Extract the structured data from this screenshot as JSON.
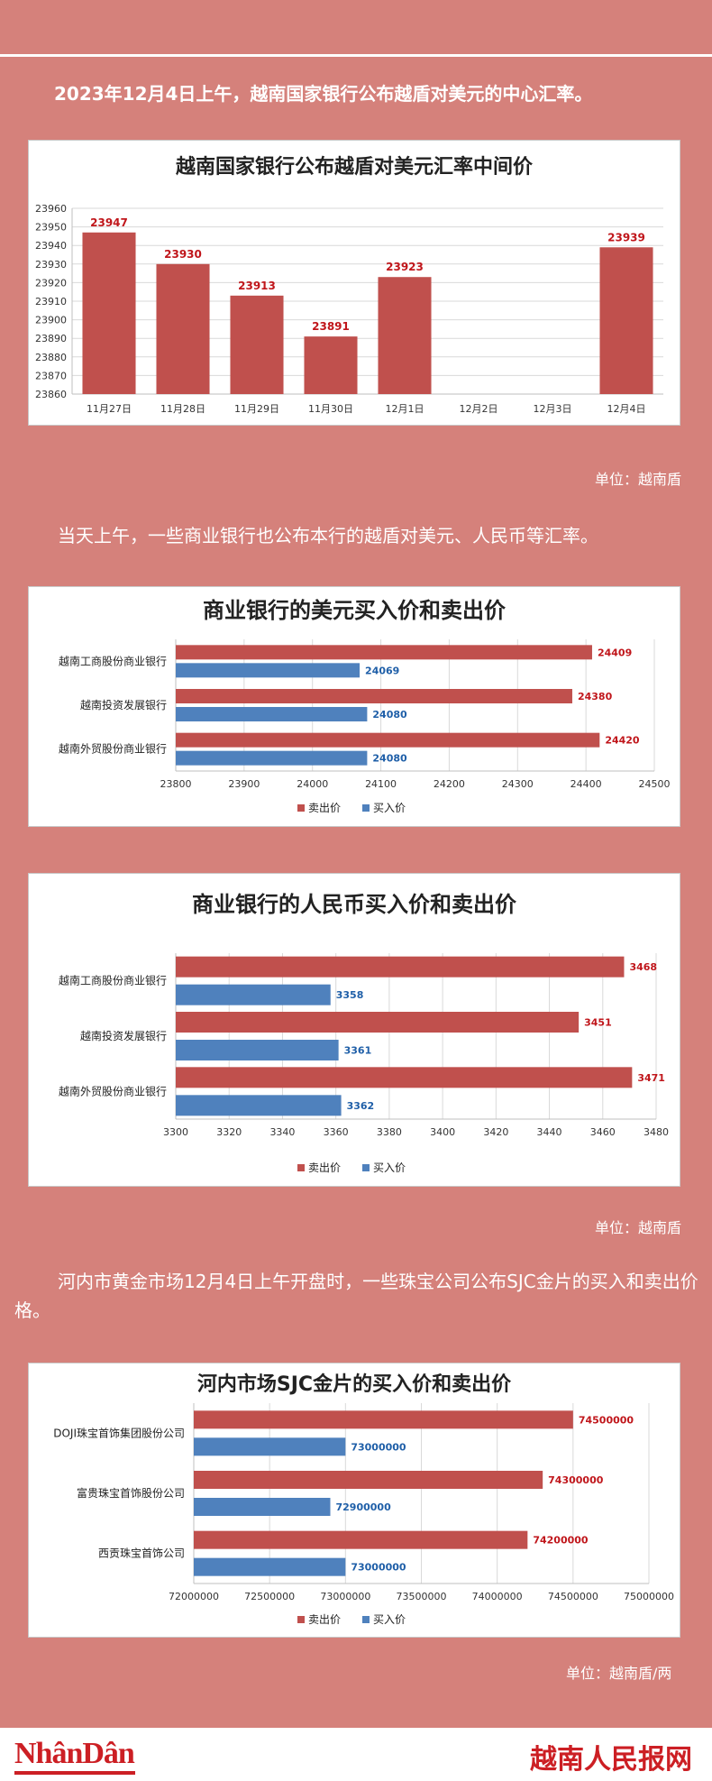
{
  "intro1": "2023年12月4日上午，越南国家银行公布越盾对美元的中心汇率。",
  "unit1": "单位：越南盾",
  "intro2": "当天上午，一些商业银行也公布本行的越盾对美元、人民币等汇率。",
  "unit2": "单位：越南盾",
  "intro3": "河内市黄金市场12月4日上午开盘时，一些珠宝公司公布SJC金片的买入和卖出价格。",
  "unit3": "单位：越南盾/两",
  "footer": {
    "logo": "NhânDân",
    "brand": "越南人民报网"
  },
  "colors": {
    "sell": "#c0504d",
    "buy": "#4f81bd",
    "sell_label": "#c0161b",
    "buy_label": "#1f5fa8"
  },
  "chart_data": [
    {
      "type": "bar",
      "title": "越南国家银行公布越盾对美元汇率中间价",
      "categories": [
        "11月27日",
        "11月28日",
        "11月29日",
        "11月30日",
        "12月1日",
        "12月2日",
        "12月3日",
        "12月4日"
      ],
      "values": [
        23947,
        23930,
        23913,
        23891,
        23923,
        null,
        null,
        23939
      ],
      "ylim": [
        23860,
        23960
      ],
      "yticks": [
        23860,
        23870,
        23880,
        23890,
        23900,
        23910,
        23920,
        23930,
        23940,
        23950,
        23960
      ],
      "grid": true
    },
    {
      "type": "bar",
      "orientation": "horizontal",
      "title": "商业银行的美元买入价和卖出价",
      "categories": [
        "越南工商股份商业银行",
        "越南投资发展银行",
        "越南外贸股份商业银行"
      ],
      "series": [
        {
          "name": "卖出价",
          "values": [
            24409,
            24380,
            24420
          ]
        },
        {
          "name": "买入价",
          "values": [
            24069,
            24080,
            24080
          ]
        }
      ],
      "xlim": [
        23800,
        24500
      ],
      "xticks": [
        23800,
        23900,
        24000,
        24100,
        24200,
        24300,
        24400,
        24500
      ],
      "legend": "bottom",
      "grid": true
    },
    {
      "type": "bar",
      "orientation": "horizontal",
      "title": "商业银行的人民币买入价和卖出价",
      "categories": [
        "越南工商股份商业银行",
        "越南投资发展银行",
        "越南外贸股份商业银行"
      ],
      "series": [
        {
          "name": "卖出价",
          "values": [
            3468,
            3451,
            3471
          ]
        },
        {
          "name": "买入价",
          "values": [
            3358,
            3361,
            3362
          ]
        }
      ],
      "xlim": [
        3300,
        3480
      ],
      "xticks": [
        3300,
        3320,
        3340,
        3360,
        3380,
        3400,
        3420,
        3440,
        3460,
        3480
      ],
      "legend": "bottom",
      "grid": true
    },
    {
      "type": "bar",
      "orientation": "horizontal",
      "title": "河内市场SJC金片的买入价和卖出价",
      "categories": [
        "DOJI珠宝首饰集团股份公司",
        "富贵珠宝首饰股份公司",
        "西贡珠宝首饰公司"
      ],
      "series": [
        {
          "name": "卖出价",
          "values": [
            74500000,
            74300000,
            74200000
          ]
        },
        {
          "name": "买入价",
          "values": [
            73000000,
            72900000,
            73000000
          ]
        }
      ],
      "xlim": [
        72000000,
        75000000
      ],
      "xticks": [
        72000000,
        72500000,
        73000000,
        73500000,
        74000000,
        74500000,
        75000000
      ],
      "legend": "bottom",
      "grid": true
    }
  ]
}
